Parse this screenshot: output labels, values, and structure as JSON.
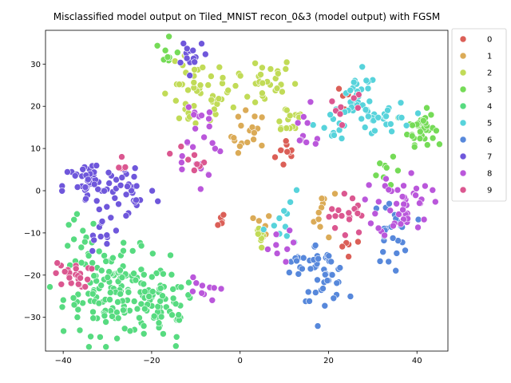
{
  "chart_data": {
    "type": "scatter",
    "title": "Misclassified model output on Tiled_MNIST recon_0&3 (model output) with FGSM",
    "xlabel": "",
    "ylabel": "",
    "xlim": [
      -44,
      47
    ],
    "ylim": [
      -38,
      38
    ],
    "xticks": [
      -40,
      -20,
      0,
      20,
      40
    ],
    "yticks": [
      -30,
      -20,
      -10,
      0,
      10,
      20,
      30
    ],
    "grid": false,
    "legend_position": "outside-right-top",
    "series": [
      {
        "name": "0",
        "color": "#db5f57",
        "clusters": [
          {
            "cx": 11,
            "cy": 9,
            "sx": 1.5,
            "sy": 2,
            "n": 10
          },
          {
            "cx": -5,
            "cy": -7,
            "sx": 1,
            "sy": 1,
            "n": 5
          },
          {
            "cx": 25,
            "cy": -13,
            "sx": 1.5,
            "sy": 1,
            "n": 5
          },
          {
            "cx": 24,
            "cy": 23,
            "sx": 1,
            "sy": 2,
            "n": 5
          }
        ]
      },
      {
        "name": "1",
        "color": "#dbab57",
        "clusters": [
          {
            "cx": 2,
            "cy": 13,
            "sx": 2,
            "sy": 3,
            "n": 18
          },
          {
            "cx": 19,
            "cy": -5,
            "sx": 1.5,
            "sy": 3,
            "n": 10
          },
          {
            "cx": 5,
            "cy": -9,
            "sx": 1,
            "sy": 2,
            "n": 6
          }
        ]
      },
      {
        "name": "2",
        "color": "#c1db57",
        "clusters": [
          {
            "cx": -10,
            "cy": 22,
            "sx": 4,
            "sy": 4,
            "n": 40
          },
          {
            "cx": 3,
            "cy": 26,
            "sx": 5,
            "sy": 3,
            "n": 35
          },
          {
            "cx": 11,
            "cy": 17,
            "sx": 2,
            "sy": 2,
            "n": 15
          },
          {
            "cx": 5,
            "cy": -11,
            "sx": 1,
            "sy": 2,
            "n": 8
          }
        ]
      },
      {
        "name": "3",
        "color": "#75db57",
        "clusters": [
          {
            "cx": 41,
            "cy": 15,
            "sx": 1.5,
            "sy": 2,
            "n": 40
          },
          {
            "cx": -16,
            "cy": 32,
            "sx": 1.5,
            "sy": 2,
            "n": 8
          },
          {
            "cx": 33,
            "cy": 6,
            "sx": 1.5,
            "sy": 3,
            "n": 8
          }
        ]
      },
      {
        "name": "4",
        "color": "#57db80",
        "clusters": [
          {
            "cx": -28,
            "cy": -24,
            "sx": 6,
            "sy": 5,
            "n": 140
          },
          {
            "cx": -18,
            "cy": -28,
            "sx": 4,
            "sy": 4,
            "n": 50
          },
          {
            "cx": -36,
            "cy": -14,
            "sx": 2,
            "sy": 4,
            "n": 15
          }
        ]
      },
      {
        "name": "5",
        "color": "#57d3db",
        "clusters": [
          {
            "cx": 27,
            "cy": 22,
            "sx": 2,
            "sy": 3,
            "n": 30
          },
          {
            "cx": 33,
            "cy": 17,
            "sx": 3,
            "sy": 2,
            "n": 25
          },
          {
            "cx": 21,
            "cy": 16,
            "sx": 2,
            "sy": 2,
            "n": 12
          },
          {
            "cx": 11,
            "cy": -7,
            "sx": 3,
            "sy": 3,
            "n": 12
          }
        ]
      },
      {
        "name": "6",
        "color": "#5788db",
        "clusters": [
          {
            "cx": 19,
            "cy": -20,
            "sx": 2.5,
            "sy": 3,
            "n": 40
          },
          {
            "cx": 34,
            "cy": -10,
            "sx": 2,
            "sy": 4,
            "n": 25
          },
          {
            "cx": 13,
            "cy": -17,
            "sx": 2,
            "sy": 2,
            "n": 12
          }
        ]
      },
      {
        "name": "7",
        "color": "#6f57db",
        "clusters": [
          {
            "cx": -34,
            "cy": 1,
            "sx": 3,
            "sy": 3,
            "n": 45
          },
          {
            "cx": -25,
            "cy": 0,
            "sx": 3,
            "sy": 4,
            "n": 30
          },
          {
            "cx": -11,
            "cy": 33,
            "sx": 2,
            "sy": 2,
            "n": 15
          },
          {
            "cx": -31,
            "cy": -11,
            "sx": 2,
            "sy": 2,
            "n": 12
          }
        ]
      },
      {
        "name": "8",
        "color": "#ba57db",
        "clusters": [
          {
            "cx": 37,
            "cy": -3,
            "sx": 3,
            "sy": 4,
            "n": 45
          },
          {
            "cx": -10,
            "cy": 12,
            "sx": 3,
            "sy": 6,
            "n": 25
          },
          {
            "cx": 14,
            "cy": 14,
            "sx": 3,
            "sy": 3,
            "n": 10
          },
          {
            "cx": 8,
            "cy": -13,
            "sx": 2,
            "sy": 2,
            "n": 8
          },
          {
            "cx": -9,
            "cy": -24,
            "sx": 2,
            "sy": 2,
            "n": 10
          }
        ]
      },
      {
        "name": "9",
        "color": "#db5790",
        "clusters": [
          {
            "cx": -38,
            "cy": -20,
            "sx": 2,
            "sy": 1.5,
            "n": 25
          },
          {
            "cx": 24,
            "cy": -6,
            "sx": 2,
            "sy": 3,
            "n": 18
          },
          {
            "cx": -12,
            "cy": 8,
            "sx": 2,
            "sy": 2,
            "n": 8
          },
          {
            "cx": 24,
            "cy": 20,
            "sx": 2,
            "sy": 2,
            "n": 8
          },
          {
            "cx": -27,
            "cy": 6,
            "sx": 1,
            "sy": 2,
            "n": 5
          }
        ]
      }
    ]
  }
}
